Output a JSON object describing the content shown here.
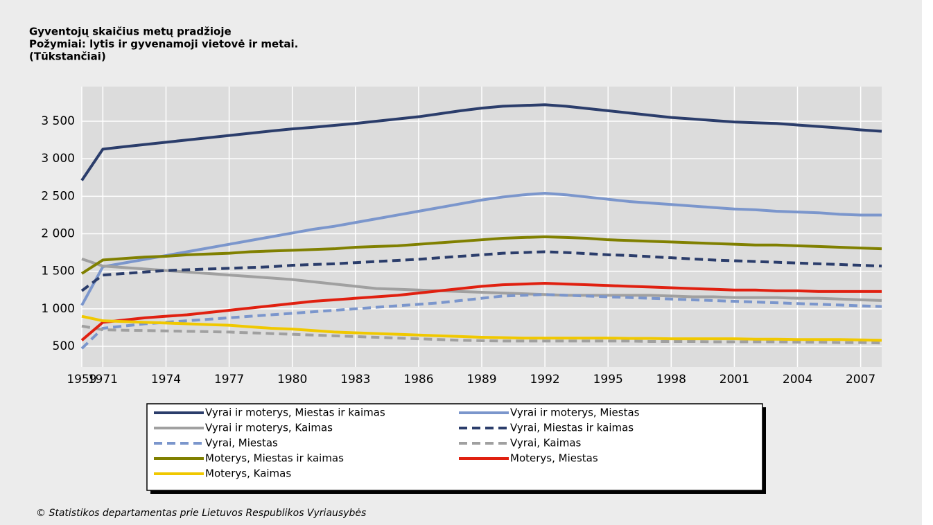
{
  "chart_data": {
    "type": "line",
    "title": [
      "Gyventojų skaičius metų pradžioje",
      "Požymiai: lytis ir gyvenamoji vietovė ir metai.",
      "(Tūkstančiai)"
    ],
    "categories": [
      "1959",
      "1971",
      null,
      null,
      "1974",
      null,
      null,
      "1977",
      null,
      null,
      "1980",
      null,
      null,
      "1983",
      null,
      null,
      "1986",
      null,
      null,
      "1989",
      null,
      null,
      "1992",
      null,
      null,
      "1995",
      null,
      null,
      "1998",
      null,
      null,
      "2001",
      null,
      null,
      "2004",
      null,
      null,
      "2007",
      null
    ],
    "ylim": [
      223,
      3962
    ],
    "yticks": [
      500,
      {
        "value": 1000,
        "label": "1 000"
      },
      {
        "value": 1500,
        "label": "1 500"
      },
      {
        "value": 2000,
        "label": "2 000"
      },
      {
        "value": 2500,
        "label": "2 500"
      },
      {
        "value": 3000,
        "label": "3 000"
      },
      {
        "value": 3500,
        "label": "3 500"
      }
    ],
    "grid": true,
    "legend": "bottom",
    "series": [
      {
        "name": "Vyrai ir moterys, Miestas ir kaimas",
        "color": "#2b3d6b",
        "dashed": false,
        "values": [
          2711,
          3128,
          3160,
          3190,
          3220,
          3250,
          3280,
          3310,
          3340,
          3370,
          3398,
          3420,
          3445,
          3470,
          3500,
          3530,
          3560,
          3600,
          3640,
          3675,
          3700,
          3710,
          3720,
          3700,
          3670,
          3640,
          3610,
          3580,
          3550,
          3530,
          3510,
          3490,
          3480,
          3470,
          3450,
          3430,
          3410,
          3385,
          3366
        ]
      },
      {
        "name": "Vyrai ir moterys, Miestas",
        "color": "#7b96cc",
        "dashed": false,
        "values": [
          1046,
          1560,
          1610,
          1660,
          1710,
          1760,
          1810,
          1860,
          1910,
          1960,
          2010,
          2060,
          2100,
          2150,
          2200,
          2250,
          2300,
          2350,
          2400,
          2450,
          2490,
          2520,
          2540,
          2520,
          2490,
          2460,
          2430,
          2410,
          2390,
          2370,
          2350,
          2330,
          2320,
          2300,
          2290,
          2280,
          2260,
          2250,
          2250
        ]
      },
      {
        "name": "Vyrai ir moterys, Kaimas",
        "color": "#a0a0a0",
        "dashed": false,
        "values": [
          1665,
          1570,
          1550,
          1530,
          1510,
          1490,
          1470,
          1450,
          1430,
          1410,
          1390,
          1360,
          1330,
          1300,
          1270,
          1260,
          1250,
          1240,
          1230,
          1220,
          1210,
          1200,
          1190,
          1180,
          1180,
          1180,
          1180,
          1180,
          1170,
          1160,
          1160,
          1150,
          1150,
          1150,
          1140,
          1140,
          1130,
          1120,
          1110
        ]
      },
      {
        "name": "Vyrai, Miestas ir kaimas",
        "color": "#2b3d6b",
        "dashed": true,
        "values": [
          1240,
          1450,
          1470,
          1490,
          1510,
          1520,
          1530,
          1540,
          1550,
          1560,
          1580,
          1590,
          1600,
          1615,
          1630,
          1645,
          1660,
          1680,
          1700,
          1720,
          1740,
          1750,
          1760,
          1750,
          1735,
          1720,
          1710,
          1695,
          1680,
          1665,
          1650,
          1640,
          1630,
          1620,
          1610,
          1600,
          1590,
          1580,
          1570
        ]
      },
      {
        "name": "Vyrai, Miestas",
        "color": "#7b96cc",
        "dashed": true,
        "values": [
          470,
          740,
          770,
          800,
          820,
          840,
          860,
          880,
          900,
          920,
          940,
          960,
          980,
          1000,
          1020,
          1040,
          1060,
          1080,
          1110,
          1140,
          1170,
          1180,
          1190,
          1180,
          1170,
          1160,
          1150,
          1140,
          1130,
          1120,
          1110,
          1100,
          1090,
          1080,
          1070,
          1060,
          1050,
          1040,
          1030
        ]
      },
      {
        "name": "Vyrai, Kaimas",
        "color": "#a0a0a0",
        "dashed": true,
        "values": [
          770,
          720,
          715,
          710,
          705,
          700,
          695,
          690,
          680,
          670,
          660,
          650,
          640,
          630,
          620,
          610,
          600,
          590,
          580,
          575,
          570,
          570,
          570,
          570,
          570,
          570,
          570,
          565,
          565,
          565,
          560,
          560,
          560,
          560,
          555,
          555,
          550,
          550,
          545
        ]
      },
      {
        "name": "Moterys, Miestas ir kaimas",
        "color": "#808000",
        "dashed": false,
        "values": [
          1470,
          1650,
          1670,
          1690,
          1700,
          1720,
          1730,
          1740,
          1760,
          1770,
          1780,
          1790,
          1800,
          1820,
          1830,
          1840,
          1860,
          1880,
          1900,
          1920,
          1940,
          1950,
          1960,
          1950,
          1940,
          1920,
          1910,
          1900,
          1890,
          1880,
          1870,
          1860,
          1850,
          1850,
          1840,
          1830,
          1820,
          1810,
          1800
        ]
      },
      {
        "name": "Moterys, Miestas",
        "color": "#e02010",
        "dashed": false,
        "values": [
          580,
          820,
          850,
          880,
          900,
          920,
          950,
          980,
          1010,
          1040,
          1070,
          1100,
          1120,
          1140,
          1160,
          1180,
          1210,
          1240,
          1270,
          1300,
          1320,
          1330,
          1340,
          1330,
          1320,
          1310,
          1300,
          1290,
          1280,
          1270,
          1260,
          1250,
          1250,
          1240,
          1240,
          1230,
          1230,
          1230,
          1230
        ]
      },
      {
        "name": "Moterys, Kaimas",
        "color": "#f0c800",
        "dashed": false,
        "values": [
          900,
          840,
          830,
          820,
          810,
          800,
          790,
          780,
          760,
          740,
          730,
          710,
          690,
          680,
          670,
          660,
          650,
          640,
          630,
          620,
          615,
          610,
          610,
          610,
          610,
          610,
          605,
          605,
          600,
          600,
          600,
          600,
          595,
          595,
          590,
          590,
          590,
          585,
          580
        ]
      }
    ],
    "footer": "© Statistikos departamentas prie Lietuvos Respublikos Vyriausybės"
  }
}
